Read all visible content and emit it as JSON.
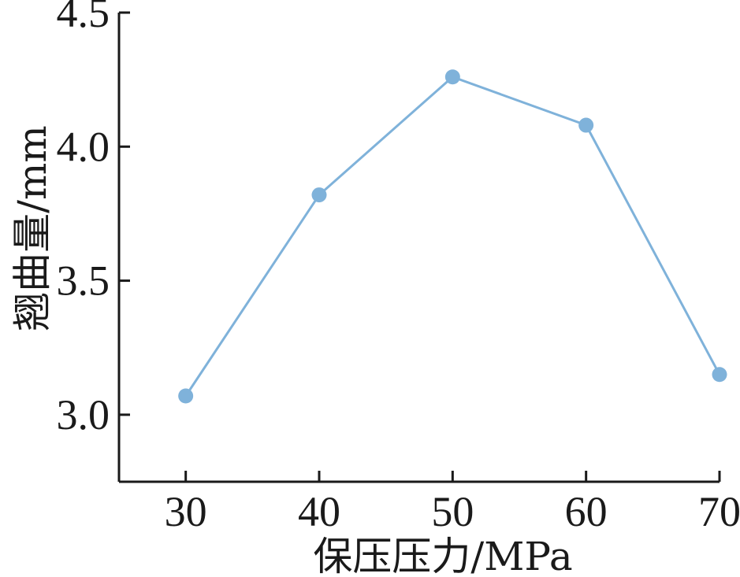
{
  "chart_data": {
    "type": "line",
    "xlabel": "保压压力/MPa",
    "ylabel": "翘曲量/mm",
    "x": [
      30,
      40,
      50,
      60,
      70
    ],
    "xticks": [
      "30",
      "40",
      "50",
      "60",
      "70"
    ],
    "yticks": [
      "3.0",
      "3.5",
      "4.0",
      "4.5"
    ],
    "xlim": [
      25,
      70
    ],
    "ylim": [
      2.75,
      4.5
    ],
    "grid": false,
    "series": [
      {
        "values": [
          3.07,
          3.82,
          4.26,
          4.08,
          3.15
        ],
        "color": "#7fb2da",
        "marker": "circle"
      }
    ]
  }
}
